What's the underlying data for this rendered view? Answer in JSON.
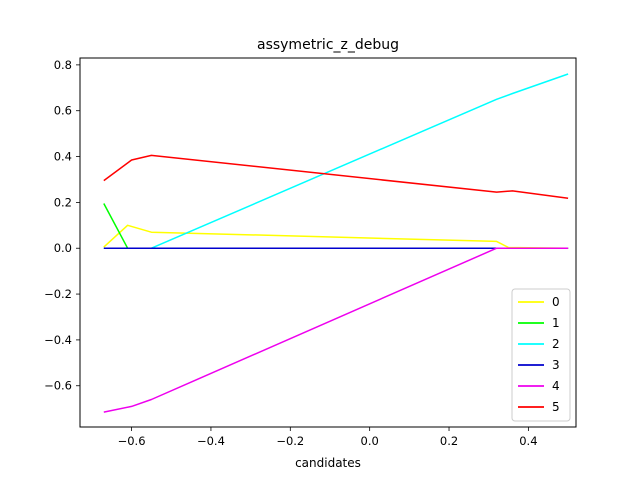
{
  "chart_data": {
    "type": "line",
    "title": "assymetric_z_debug",
    "xlabel": "candidates",
    "ylabel": "",
    "xlim": [
      -0.73,
      0.52
    ],
    "ylim": [
      -0.78,
      0.83
    ],
    "xticks": [
      -0.6,
      -0.4,
      -0.2,
      0.0,
      0.2,
      0.4
    ],
    "xtick_labels": [
      "−0.6",
      "−0.4",
      "−0.2",
      "0.0",
      "0.2",
      "0.4"
    ],
    "yticks": [
      -0.6,
      -0.4,
      -0.2,
      0.0,
      0.2,
      0.4,
      0.6,
      0.8
    ],
    "ytick_labels": [
      "−0.6",
      "−0.4",
      "−0.2",
      "0.0",
      "0.2",
      "0.4",
      "0.6",
      "0.8"
    ],
    "grid": false,
    "legend_position": "lower-right",
    "series": [
      {
        "name": "0",
        "color": "#ffff00",
        "x": [
          -0.67,
          -0.61,
          -0.55,
          0.32,
          0.35,
          0.5
        ],
        "y": [
          0.005,
          0.1,
          0.07,
          0.03,
          0.003,
          0.0
        ]
      },
      {
        "name": "1",
        "color": "#00ff00",
        "x": [
          -0.67,
          -0.61,
          0.5
        ],
        "y": [
          0.195,
          0.0,
          0.0
        ]
      },
      {
        "name": "2",
        "color": "#00ffff",
        "x": [
          -0.67,
          -0.55,
          0.32,
          0.36,
          0.5
        ],
        "y": [
          0.0,
          0.0,
          0.65,
          0.675,
          0.76
        ]
      },
      {
        "name": "3",
        "color": "#0000cd",
        "x": [
          -0.67,
          0.5
        ],
        "y": [
          0.0,
          0.0
        ]
      },
      {
        "name": "4",
        "color": "#ee00ee",
        "x": [
          -0.67,
          -0.6,
          -0.55,
          0.32,
          0.5
        ],
        "y": [
          -0.715,
          -0.69,
          -0.66,
          0.0,
          0.0
        ]
      },
      {
        "name": "5",
        "color": "#ff0000",
        "x": [
          -0.67,
          -0.6,
          -0.55,
          0.32,
          0.36,
          0.5
        ],
        "y": [
          0.295,
          0.385,
          0.405,
          0.245,
          0.25,
          0.218
        ]
      }
    ]
  }
}
